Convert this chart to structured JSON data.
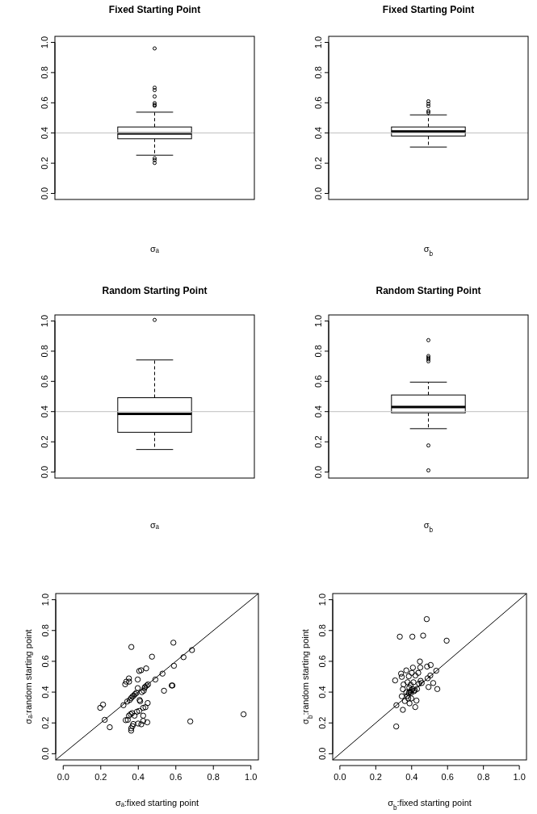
{
  "chart_data": [
    {
      "type": "box",
      "title": "Fixed Starting Point",
      "xlabel": "σₐ",
      "categories": [
        null
      ],
      "tick_labels": "y",
      "ylim": [
        -0.04,
        1.04
      ],
      "yticks": [
        {
          "value": 0,
          "label": "0.0"
        },
        {
          "value": 0.2,
          "label": "0.2"
        },
        {
          "value": 0.4,
          "label": "0.4"
        },
        {
          "value": 0.6,
          "label": "0.6"
        },
        {
          "value": 0.8,
          "label": "0.8"
        },
        {
          "value": 1,
          "label": "1.0"
        }
      ],
      "boxes": [
        {
          "low": 0.253,
          "q1": 0.362,
          "median": 0.397,
          "q3": 0.44,
          "high": 0.538,
          "outliers": [
            0.96,
            0.7,
            0.684,
            0.642,
            0.598,
            0.587,
            0.58,
            0.233,
            0.22,
            0.202
          ]
        }
      ],
      "ref_lines": [
        {
          "axis": "y",
          "value": 0.4,
          "color": "#bebebe"
        }
      ]
    },
    {
      "type": "box",
      "title": "Fixed Starting Point",
      "xlabel": "σ$_{b}$",
      "categories": [
        null
      ],
      "tick_labels": "y",
      "ylim": [
        -0.04,
        1.04
      ],
      "yticks": [
        {
          "value": 0,
          "label": "0.0"
        },
        {
          "value": 0.2,
          "label": "0.2"
        },
        {
          "value": 0.4,
          "label": "0.4"
        },
        {
          "value": 0.6,
          "label": "0.6"
        },
        {
          "value": 0.8,
          "label": "0.8"
        },
        {
          "value": 1,
          "label": "1.0"
        }
      ],
      "boxes": [
        {
          "low": 0.307,
          "q1": 0.38,
          "median": 0.41,
          "q3": 0.44,
          "high": 0.52,
          "outliers": [
            0.61,
            0.593,
            0.578,
            0.545,
            0.535
          ]
        }
      ],
      "ref_lines": [
        {
          "axis": "y",
          "value": 0.4,
          "color": "#bebebe"
        }
      ]
    },
    {
      "type": "box",
      "title": "Random Starting Point",
      "xlabel": "σₐ",
      "categories": [
        null
      ],
      "tick_labels": "y",
      "ylim": [
        -0.04,
        1.04
      ],
      "yticks": [
        {
          "value": 0,
          "label": "0.0"
        },
        {
          "value": 0.2,
          "label": "0.2"
        },
        {
          "value": 0.4,
          "label": "0.4"
        },
        {
          "value": 0.6,
          "label": "0.6"
        },
        {
          "value": 0.8,
          "label": "0.8"
        },
        {
          "value": 1,
          "label": "1.0"
        }
      ],
      "boxes": [
        {
          "low": 0.149,
          "q1": 0.263,
          "median": 0.385,
          "q3": 0.492,
          "high": 0.742,
          "outliers": [
            1.007
          ]
        }
      ],
      "ref_lines": [
        {
          "axis": "y",
          "value": 0.4,
          "color": "#bebebe"
        }
      ]
    },
    {
      "type": "box",
      "title": "Random Starting Point",
      "xlabel": "σ$_{b}$",
      "categories": [
        null
      ],
      "tick_labels": "y",
      "ylim": [
        -0.04,
        1.04
      ],
      "yticks": [
        {
          "value": 0,
          "label": "0.0"
        },
        {
          "value": 0.2,
          "label": "0.2"
        },
        {
          "value": 0.4,
          "label": "0.4"
        },
        {
          "value": 0.6,
          "label": "0.6"
        },
        {
          "value": 0.8,
          "label": "0.8"
        },
        {
          "value": 1,
          "label": "1.0"
        }
      ],
      "boxes": [
        {
          "low": 0.287,
          "q1": 0.392,
          "median": 0.43,
          "q3": 0.51,
          "high": 0.595,
          "outliers": [
            0.873,
            0.768,
            0.757,
            0.746,
            0.733,
            0.176,
            0.011
          ]
        }
      ],
      "ref_lines": [
        {
          "axis": "y",
          "value": 0.4,
          "color": "#bebebe"
        }
      ]
    },
    {
      "type": "scatter",
      "xlabel": "σₐ:fixed starting point",
      "ylabel": "σₐ:random starting point",
      "xlim": [
        -0.04,
        1.04
      ],
      "ylim": [
        -0.04,
        1.04
      ],
      "xticks": [
        {
          "value": 0,
          "label": "0.0"
        },
        {
          "value": 0.2,
          "label": "0.2"
        },
        {
          "value": 0.4,
          "label": "0.4"
        },
        {
          "value": 0.6,
          "label": "0.6"
        },
        {
          "value": 0.8,
          "label": "0.8"
        },
        {
          "value": 1,
          "label": "1.0"
        }
      ],
      "yticks": [
        {
          "value": 0,
          "label": "0.0"
        },
        {
          "value": 0.2,
          "label": "0.2"
        },
        {
          "value": 0.4,
          "label": "0.4"
        },
        {
          "value": 0.6,
          "label": "0.6"
        },
        {
          "value": 0.8,
          "label": "0.8"
        },
        {
          "value": 1,
          "label": "1.0"
        }
      ],
      "series": [
        {
          "type": "scatter",
          "color": "#000000",
          "marker": "circle",
          "x": [
            0.197,
            0.212,
            0.221,
            0.248,
            0.321,
            0.33,
            0.333,
            0.336,
            0.35,
            0.351,
            0.341,
            0.344,
            0.35,
            0.359,
            0.363,
            0.367,
            0.362,
            0.362,
            0.369,
            0.373,
            0.38,
            0.354,
            0.362,
            0.369,
            0.376,
            0.383,
            0.39,
            0.393,
            0.397,
            0.397,
            0.399,
            0.405,
            0.407,
            0.415,
            0.405,
            0.41,
            0.416,
            0.419,
            0.426,
            0.426,
            0.429,
            0.433,
            0.436,
            0.426,
            0.438,
            0.442,
            0.445,
            0.448,
            0.45,
            0.452,
            0.473,
            0.491,
            0.529,
            0.537,
            0.578,
            0.582,
            0.587,
            0.59,
            0.641,
            0.677,
            0.686,
            0.961
          ],
          "values": [
            0.298,
            0.319,
            0.22,
            0.172,
            0.315,
            0.451,
            0.218,
            0.468,
            0.489,
            0.468,
            0.339,
            0.22,
            0.247,
            0.257,
            0.693,
            0.264,
            0.165,
            0.15,
            0.179,
            0.193,
            0.247,
            0.349,
            0.361,
            0.371,
            0.378,
            0.387,
            0.395,
            0.273,
            0.482,
            0.426,
            0.196,
            0.537,
            0.349,
            0.542,
            0.278,
            0.341,
            0.191,
            0.4,
            0.298,
            0.247,
            0.409,
            0.426,
            0.434,
            0.213,
            0.302,
            0.554,
            0.443,
            0.204,
            0.329,
            0.45,
            0.63,
            0.482,
            0.52,
            0.409,
            0.443,
            0.443,
            0.721,
            0.571,
            0.627,
            0.21,
            0.673,
            0.256
          ]
        },
        {
          "type": "line",
          "color": "#000000",
          "marker": "none",
          "x": [
            -0.04,
            1.04
          ],
          "values": [
            -0.04,
            1.04
          ]
        }
      ]
    },
    {
      "type": "scatter",
      "xlabel": "σ$_{b}$:fixed starting point",
      "ylabel": "σ$_{b}$:random starting point",
      "xlim": [
        -0.04,
        1.04
      ],
      "ylim": [
        -0.04,
        1.04
      ],
      "xticks": [
        {
          "value": 0,
          "label": "0.0"
        },
        {
          "value": 0.2,
          "label": "0.2"
        },
        {
          "value": 0.4,
          "label": "0.4"
        },
        {
          "value": 0.6,
          "label": "0.6"
        },
        {
          "value": 0.8,
          "label": "0.8"
        },
        {
          "value": 1,
          "label": "1.0"
        }
      ],
      "yticks": [
        {
          "value": 0,
          "label": "0.0"
        },
        {
          "value": 0.2,
          "label": "0.2"
        },
        {
          "value": 0.4,
          "label": "0.4"
        },
        {
          "value": 0.6,
          "label": "0.6"
        },
        {
          "value": 0.8,
          "label": "0.8"
        },
        {
          "value": 1,
          "label": "1.0"
        }
      ],
      "series": [
        {
          "type": "scatter",
          "color": "#000000",
          "marker": "circle",
          "x": [
            0.314,
            0.315,
            0.308,
            0.334,
            0.351,
            0.341,
            0.345,
            0.345,
            0.351,
            0.355,
            0.362,
            0.37,
            0.37,
            0.377,
            0.377,
            0.381,
            0.384,
            0.387,
            0.388,
            0.394,
            0.395,
            0.398,
            0.401,
            0.404,
            0.405,
            0.407,
            0.41,
            0.413,
            0.418,
            0.42,
            0.421,
            0.427,
            0.43,
            0.437,
            0.441,
            0.446,
            0.448,
            0.45,
            0.456,
            0.464,
            0.484,
            0.486,
            0.489,
            0.494,
            0.504,
            0.506,
            0.52,
            0.537,
            0.543,
            0.595,
            0.384,
            0.391,
            0.398
          ],
          "values": [
            0.177,
            0.315,
            0.476,
            0.76,
            0.285,
            0.52,
            0.499,
            0.373,
            0.419,
            0.45,
            0.342,
            0.541,
            0.399,
            0.464,
            0.377,
            0.359,
            0.503,
            0.429,
            0.327,
            0.447,
            0.394,
            0.359,
            0.525,
            0.76,
            0.42,
            0.559,
            0.464,
            0.406,
            0.412,
            0.303,
            0.508,
            0.345,
            0.42,
            0.525,
            0.455,
            0.599,
            0.56,
            0.473,
            0.459,
            0.767,
            0.874,
            0.566,
            0.49,
            0.433,
            0.508,
            0.576,
            0.459,
            0.539,
            0.42,
            0.734,
            0.394,
            0.403,
            0.412
          ]
        },
        {
          "type": "line",
          "color": "#000000",
          "marker": "none",
          "x": [
            -0.04,
            1.04
          ],
          "values": [
            -0.04,
            1.04
          ]
        }
      ]
    }
  ]
}
